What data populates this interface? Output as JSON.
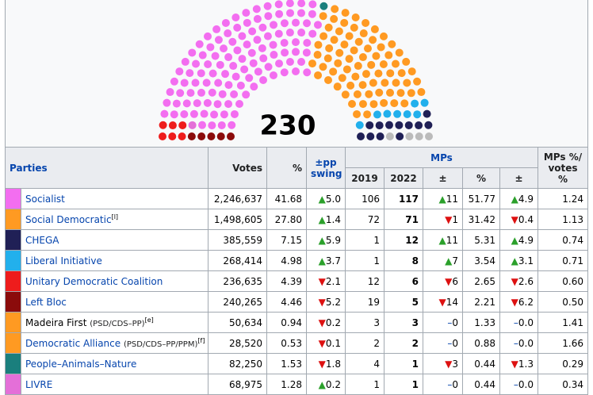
{
  "seats_total": "230",
  "header": {
    "parties": "Parties",
    "votes": "Votes",
    "pct": "%",
    "swing": "±pp swing",
    "mps": "MPs",
    "y2019": "2019",
    "y2022": "2022",
    "chg": "±",
    "mppct": "%",
    "mpchg": "±",
    "ratio": "MPs %/ votes %"
  },
  "rows": [
    {
      "name": "Socialist",
      "link": true,
      "color": "#f36ef0",
      "votes": "2,246,637",
      "pct": "41.68",
      "swing": {
        "dir": "up",
        "text": "5.0"
      },
      "mp2019": "106",
      "mp2022": "117",
      "chg": {
        "dir": "up",
        "text": "11"
      },
      "mppct": "51.77",
      "mpchg": {
        "dir": "up",
        "text": "4.9"
      },
      "ratio": "1.24"
    },
    {
      "name": "Social Democratic",
      "sup": "[l]",
      "link": true,
      "color": "#ff9a22",
      "votes": "1,498,605",
      "pct": "27.80",
      "swing": {
        "dir": "up",
        "text": "1.4"
      },
      "mp2019": "72",
      "mp2022": "71",
      "chg": {
        "dir": "down",
        "text": "1"
      },
      "mppct": "31.42",
      "mpchg": {
        "dir": "down",
        "text": "0.4"
      },
      "ratio": "1.13"
    },
    {
      "name": "CHEGA",
      "link": true,
      "color": "#202056",
      "votes": "385,559",
      "pct": "7.15",
      "swing": {
        "dir": "up",
        "text": "5.9"
      },
      "mp2019": "1",
      "mp2022": "12",
      "chg": {
        "dir": "up",
        "text": "11"
      },
      "mppct": "5.31",
      "mpchg": {
        "dir": "up",
        "text": "4.9"
      },
      "ratio": "0.74"
    },
    {
      "name": "Liberal Initiative",
      "link": true,
      "color": "#22b0ec",
      "votes": "268,414",
      "pct": "4.98",
      "swing": {
        "dir": "up",
        "text": "3.7"
      },
      "mp2019": "1",
      "mp2022": "8",
      "chg": {
        "dir": "up",
        "text": "7"
      },
      "mppct": "3.54",
      "mpchg": {
        "dir": "up",
        "text": "3.1"
      },
      "ratio": "0.71"
    },
    {
      "name": "Unitary Democratic Coalition",
      "link": true,
      "color": "#ee1c1c",
      "votes": "236,635",
      "pct": "4.39",
      "swing": {
        "dir": "down",
        "text": "2.1"
      },
      "mp2019": "12",
      "mp2022": "6",
      "chg": {
        "dir": "down",
        "text": "6"
      },
      "mppct": "2.65",
      "mpchg": {
        "dir": "down",
        "text": "2.6"
      },
      "ratio": "0.60"
    },
    {
      "name": "Left Bloc",
      "link": true,
      "color": "#8b0b0b",
      "votes": "240,265",
      "pct": "4.46",
      "swing": {
        "dir": "down",
        "text": "5.2"
      },
      "mp2019": "19",
      "mp2022": "5",
      "chg": {
        "dir": "down",
        "text": "14"
      },
      "mppct": "2.21",
      "mpchg": {
        "dir": "down",
        "text": "6.2"
      },
      "ratio": "0.50"
    },
    {
      "name": "Madeira First",
      "note": "(PSD/CDS–PP)",
      "sup": "[e]",
      "link": false,
      "color": "#ff9a22",
      "votes": "50,634",
      "pct": "0.94",
      "swing": {
        "dir": "down",
        "text": "0.2"
      },
      "mp2019": "3",
      "mp2022": "3",
      "chg": {
        "dir": "none",
        "text": "0"
      },
      "mppct": "1.33",
      "mpchg": {
        "dir": "none",
        "text": "0.0"
      },
      "ratio": "1.41"
    },
    {
      "name": "Democratic Alliance",
      "note": "(PSD/CDS–PP/PPM)",
      "sup": "[f]",
      "link": true,
      "color": "#ff9a22",
      "votes": "28,520",
      "pct": "0.53",
      "swing": {
        "dir": "down",
        "text": "0.1"
      },
      "mp2019": "2",
      "mp2022": "2",
      "chg": {
        "dir": "none",
        "text": "0"
      },
      "mppct": "0.88",
      "mpchg": {
        "dir": "none",
        "text": "0.0"
      },
      "ratio": "1.66"
    },
    {
      "name": "People–Animals–Nature",
      "link": true,
      "color": "#1a7f7d",
      "votes": "82,250",
      "pct": "1.53",
      "swing": {
        "dir": "down",
        "text": "1.8"
      },
      "mp2019": "4",
      "mp2022": "1",
      "chg": {
        "dir": "down",
        "text": "3"
      },
      "mppct": "0.44",
      "mpchg": {
        "dir": "down",
        "text": "1.3"
      },
      "ratio": "0.29"
    },
    {
      "name": "LIVRE",
      "link": true,
      "color": "#e46fd8",
      "votes": "68,975",
      "pct": "1.28",
      "swing": {
        "dir": "up",
        "text": "0.2"
      },
      "mp2019": "1",
      "mp2022": "1",
      "chg": {
        "dir": "none",
        "text": "0"
      },
      "mppct": "0.44",
      "mpchg": {
        "dir": "none",
        "text": "0.0"
      },
      "ratio": "0.34"
    }
  ]
}
